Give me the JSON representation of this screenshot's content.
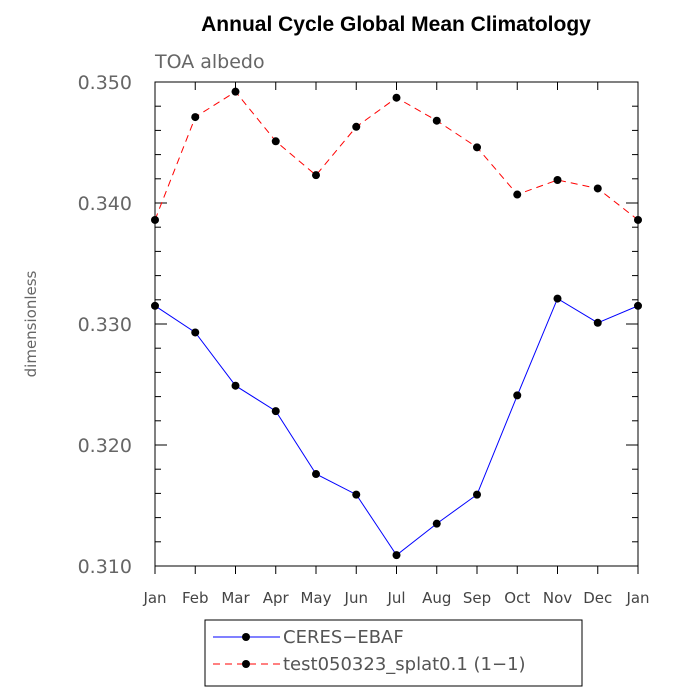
{
  "chart_data": {
    "type": "line",
    "title": "Annual Cycle Global Mean Climatology",
    "subtitle": "TOA albedo",
    "xlabel": "",
    "ylabel": "dimensionless",
    "categories": [
      "Jan",
      "Feb",
      "Mar",
      "Apr",
      "May",
      "Jun",
      "Jul",
      "Aug",
      "Sep",
      "Oct",
      "Nov",
      "Dec",
      "Jan"
    ],
    "ylim": [
      0.31,
      0.35
    ],
    "yticks": [
      "0.310",
      "0.320",
      "0.330",
      "0.340",
      "0.350"
    ],
    "ytick_values": [
      0.31,
      0.32,
      0.33,
      0.34,
      0.35
    ],
    "series": [
      {
        "name": "CERES−EBAF",
        "color": "#0000ff",
        "line_style": "solid",
        "values": [
          0.3315,
          0.3293,
          0.3249,
          0.3228,
          0.3176,
          0.3159,
          0.3109,
          0.3135,
          0.3159,
          0.3241,
          0.3321,
          0.3301,
          0.3315
        ]
      },
      {
        "name": "test050323_splat0.1 (1−1)",
        "color": "#ff0000",
        "line_style": "dashed",
        "values": [
          0.3386,
          0.3471,
          0.3492,
          0.3451,
          0.3423,
          0.3463,
          0.3487,
          0.3468,
          0.3446,
          0.3407,
          0.3419,
          0.3412,
          0.3386
        ]
      }
    ],
    "legend_position": "bottom"
  }
}
